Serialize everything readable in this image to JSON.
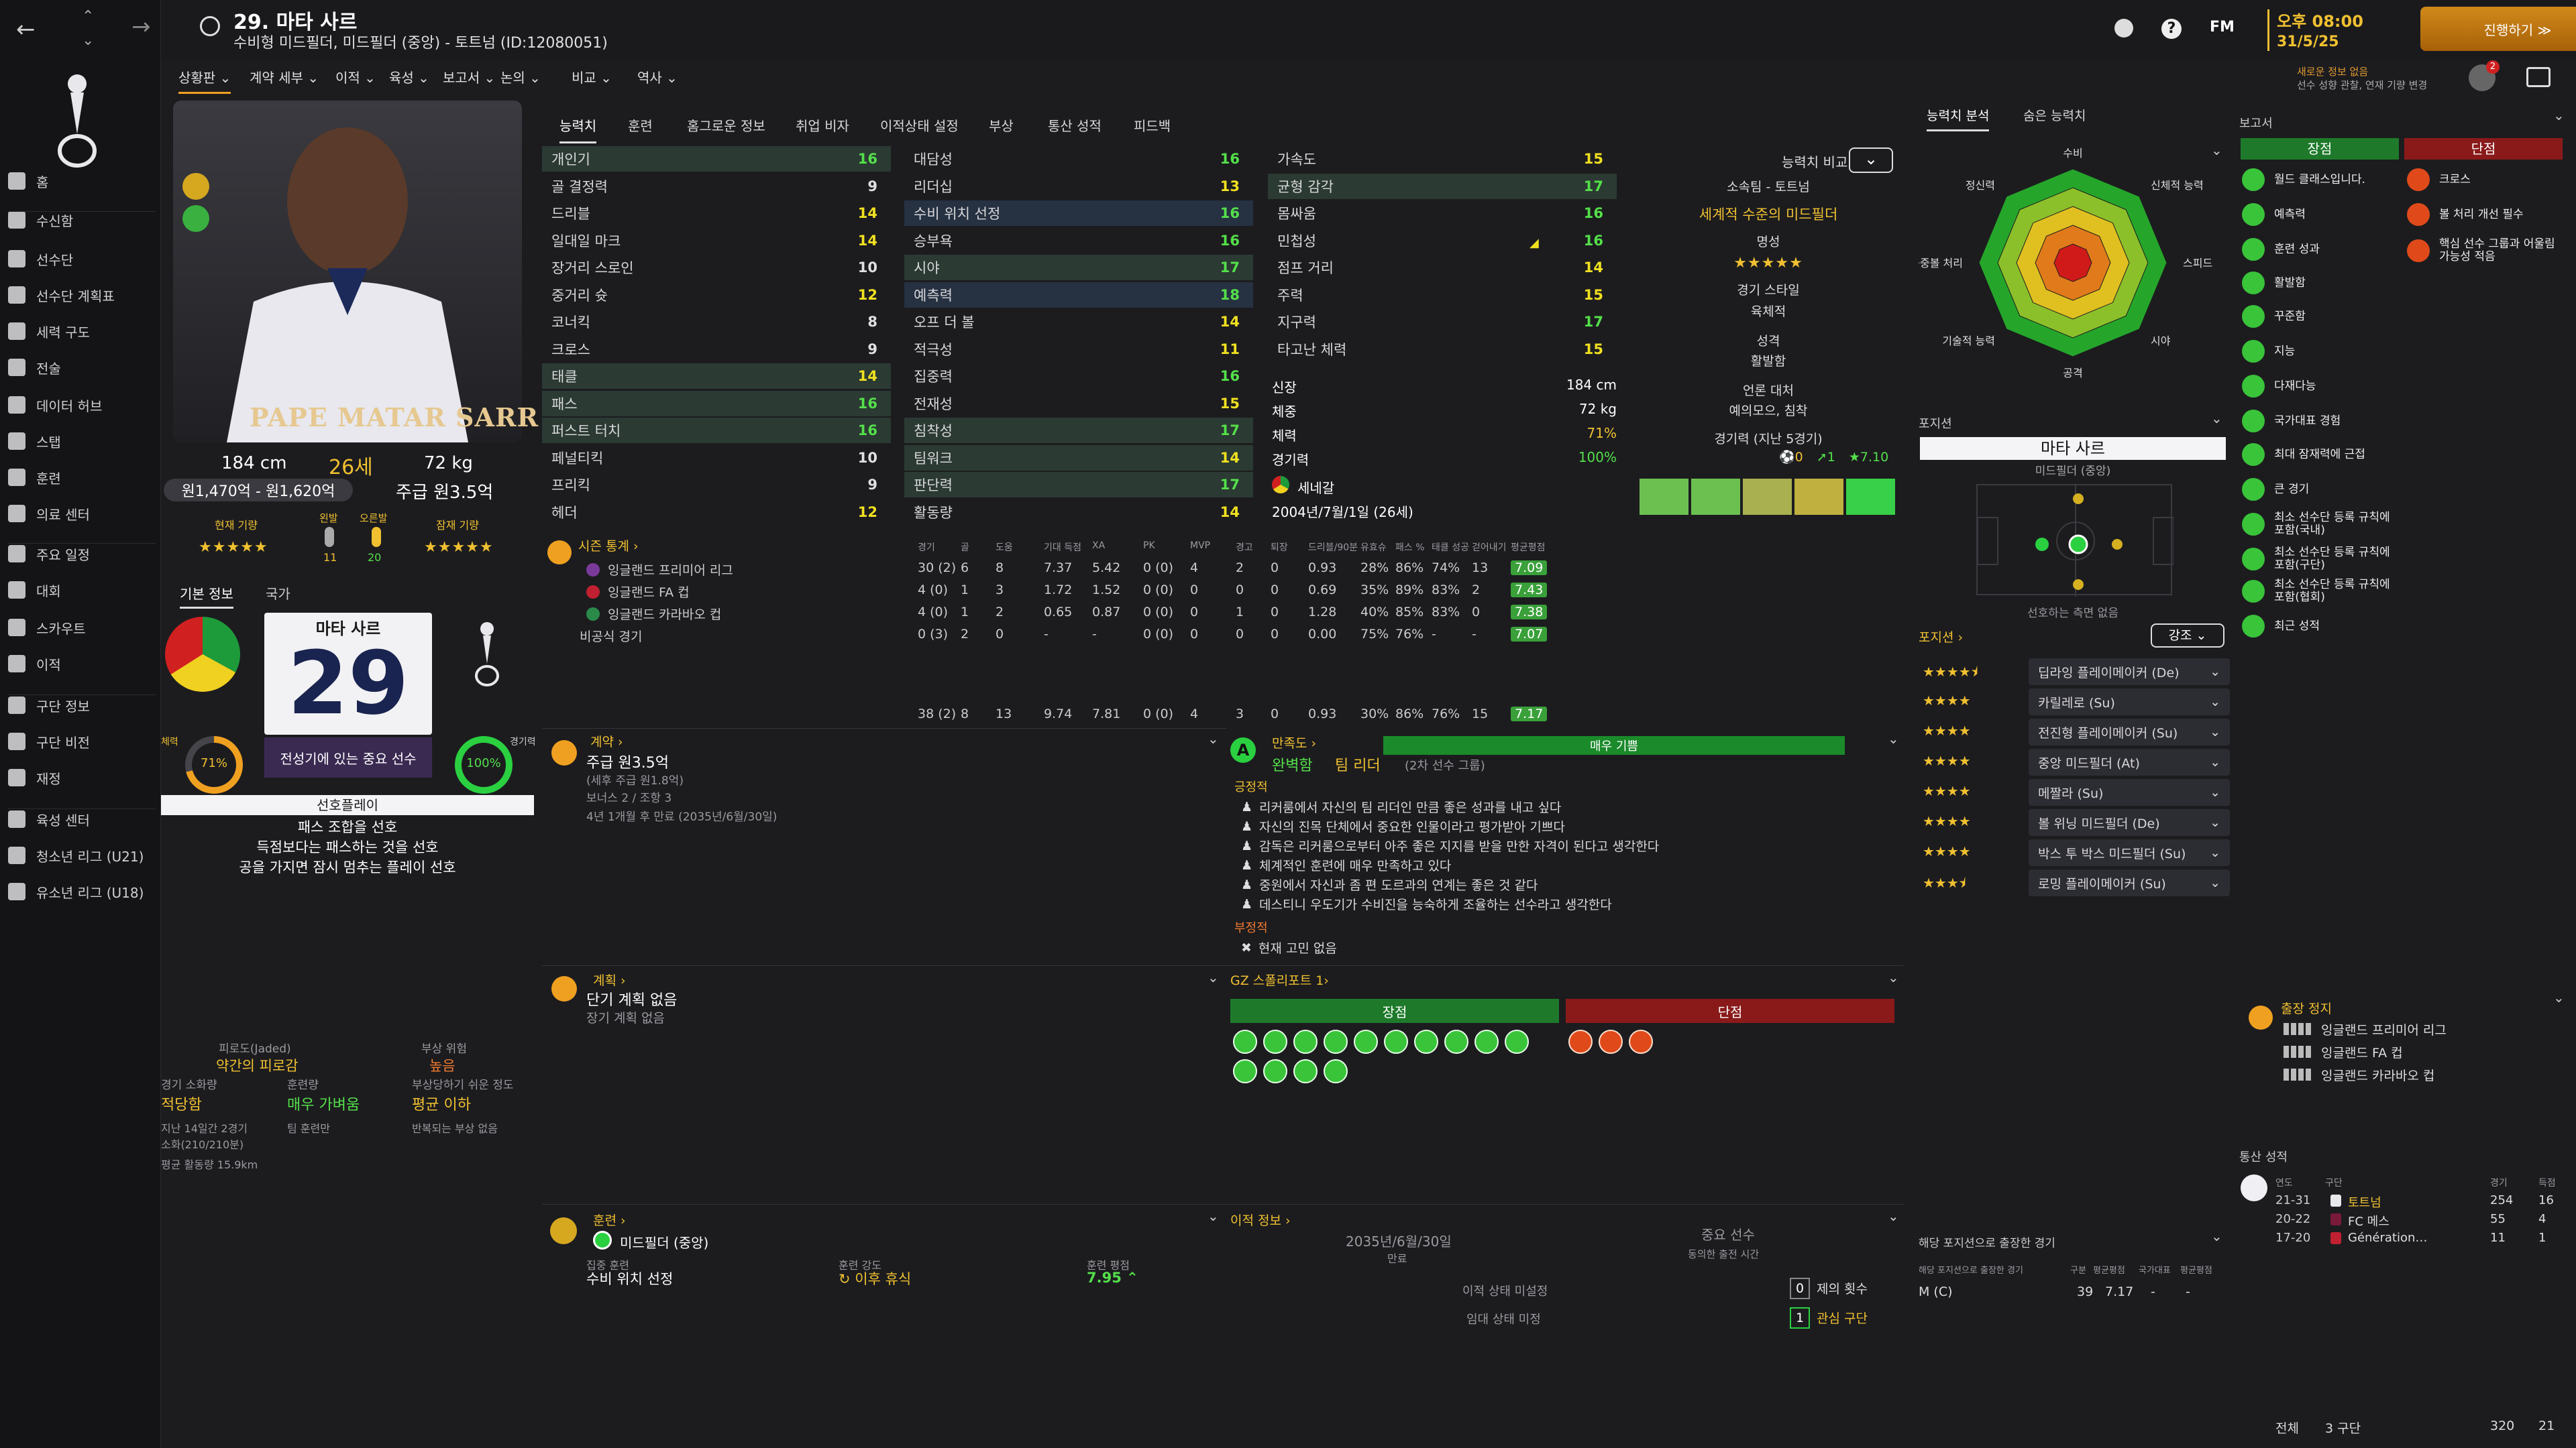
{
  "header": {
    "title": "29. 마타 사르",
    "subtitle": "수비형 미드필더, 미드필더 (중앙) - 토트넘 (ID:12080051)",
    "time": "오후 08:00",
    "date": "31/5/25",
    "continue_label": "진행하기 ≫",
    "fm_label": "FM",
    "notice_title": "새로운 정보 없음",
    "notice_text": "선수 성향 관찰, 연재 기량 변경",
    "badge_count": "2"
  },
  "sidebar": {
    "items": [
      {
        "label": "홈",
        "icon": "home-icon"
      },
      {
        "label": "수신함",
        "icon": "inbox-icon"
      },
      {
        "label": "선수단",
        "icon": "shirt-icon"
      },
      {
        "label": "선수단 계획표",
        "icon": "planner-icon"
      },
      {
        "label": "세력 구도",
        "icon": "dynamics-icon"
      },
      {
        "label": "전술",
        "icon": "tactics-icon"
      },
      {
        "label": "데이터 허브",
        "icon": "data-hub-icon"
      },
      {
        "label": "스탭",
        "icon": "staff-icon"
      },
      {
        "label": "훈련",
        "icon": "training-icon"
      },
      {
        "label": "의료 센터",
        "icon": "medical-icon"
      },
      {
        "label": "주요 일정",
        "icon": "calendar-icon"
      },
      {
        "label": "대회",
        "icon": "trophy-icon"
      },
      {
        "label": "스카우트",
        "icon": "scout-icon"
      },
      {
        "label": "이적",
        "icon": "transfer-icon"
      },
      {
        "label": "구단 정보",
        "icon": "club-icon"
      },
      {
        "label": "구단 비전",
        "icon": "vision-icon"
      },
      {
        "label": "재정",
        "icon": "finance-icon"
      },
      {
        "label": "육성 센터",
        "icon": "development-icon"
      },
      {
        "label": "청소년 리그 (U21)",
        "icon": "youth-u21-icon"
      },
      {
        "label": "유소년 리그 (U18)",
        "icon": "youth-u18-icon"
      }
    ]
  },
  "subnav": [
    "상황판 ⌄",
    "계약 세부 ⌄",
    "이적 ⌄",
    "육성 ⌄",
    "보고서 ⌄",
    "논의 ⌄",
    "비교 ⌄",
    "역사 ⌄"
  ],
  "tabs": [
    "능력치",
    "훈련",
    "홈그로운 정보",
    "취업 비자",
    "이적상태 설정",
    "부상",
    "통산 성적",
    "피드백"
  ],
  "right_tabs": [
    "능력치 분석",
    "숨은 능력치"
  ],
  "player": {
    "name_on_photo": "PAPE MATAR SARR",
    "height": "184 cm",
    "age": "26세",
    "weight": "72 kg",
    "value": "원1,470억 - 원1,620억",
    "wage": "주급 원3.5억",
    "current_ability_label": "현재 기량",
    "potential_label": "잠재 기량",
    "left_foot_label": "왼발",
    "right_foot_label": "오른발",
    "left_foot": "11",
    "right_foot": "20",
    "card_name": "마타 사르",
    "card_number": "29",
    "card_text": "전성기에 있는 중요 선수",
    "fitness_label": "체력",
    "fitness": "71%",
    "sharpness_label": "경기력",
    "sharpness": "100%",
    "info_tab": "기본 정보",
    "nation_tab": "국가"
  },
  "preferred_moves": {
    "title": "선호플레이",
    "items": [
      "패스 조합을 선호",
      "득점보다는 패스하는 것을 선호",
      "공을 가지면 잠시 멈추는 플레이 선호"
    ]
  },
  "fatigue": {
    "label": "피로도(Jaded)",
    "value": "약간의 피로감",
    "injury_label": "부상 위험",
    "injury_value": "높음",
    "load_label": "경기 소화량",
    "load_value": "적당함",
    "train_label": "훈련량",
    "train_value": "매우 가벼움",
    "prone_label": "부상당하기 쉬운 정도",
    "prone_value": "평균 이하",
    "note1": "지난 14일간 2경기",
    "note2": "소화(210/210분)",
    "note3": "평균 활동량 15.9km",
    "note4": "팀 훈련만",
    "note5": "반복되는 부상 없음"
  },
  "attributes": {
    "technical": [
      {
        "name": "개인기",
        "value": "16"
      },
      {
        "name": "골 결정력",
        "value": "9"
      },
      {
        "name": "드리블",
        "value": "14"
      },
      {
        "name": "일대일 마크",
        "value": "14"
      },
      {
        "name": "장거리 스로인",
        "value": "10"
      },
      {
        "name": "중거리 슛",
        "value": "12"
      },
      {
        "name": "코너킥",
        "value": "8"
      },
      {
        "name": "크로스",
        "value": "9"
      },
      {
        "name": "태클",
        "value": "14"
      },
      {
        "name": "패스",
        "value": "16"
      },
      {
        "name": "퍼스트 터치",
        "value": "16"
      },
      {
        "name": "페널티킥",
        "value": "10"
      },
      {
        "name": "프리킥",
        "value": "9"
      },
      {
        "name": "헤더",
        "value": "12"
      }
    ],
    "mental": [
      {
        "name": "대담성",
        "value": "16"
      },
      {
        "name": "리더십",
        "value": "13"
      },
      {
        "name": "수비 위치 선정",
        "value": "16"
      },
      {
        "name": "승부욕",
        "value": "16"
      },
      {
        "name": "시야",
        "value": "17"
      },
      {
        "name": "예측력",
        "value": "18"
      },
      {
        "name": "오프 더 볼",
        "value": "14"
      },
      {
        "name": "적극성",
        "value": "11"
      },
      {
        "name": "집중력",
        "value": "16"
      },
      {
        "name": "전재성",
        "value": "15"
      },
      {
        "name": "침착성",
        "value": "17"
      },
      {
        "name": "팀워크",
        "value": "14"
      },
      {
        "name": "판단력",
        "value": "17"
      },
      {
        "name": "활동량",
        "value": "14"
      }
    ],
    "physical": [
      {
        "name": "가속도",
        "value": "15"
      },
      {
        "name": "균형 감각",
        "value": "17"
      },
      {
        "name": "몸싸움",
        "value": "16"
      },
      {
        "name": "민첩성",
        "value": "16"
      },
      {
        "name": "점프 거리",
        "value": "14"
      },
      {
        "name": "주력",
        "value": "15"
      },
      {
        "name": "지구력",
        "value": "17"
      },
      {
        "name": "타고난 체력",
        "value": "15"
      }
    ]
  },
  "physical_info": [
    {
      "label": "신장",
      "value": "184 cm"
    },
    {
      "label": "체중",
      "value": "72 kg"
    },
    {
      "label": "체력",
      "value": "71%"
    },
    {
      "label": "경기력",
      "value": "100%"
    }
  ],
  "nation": "세네갈",
  "dob": "2004년/7월/1일 (26세)",
  "compare": {
    "label": "능력치 비교",
    "club_label": "소속팀 - 토트넘",
    "club_value": "세계적 수준의 미드필더",
    "rep_label": "명성",
    "style_label": "경기 스타일",
    "style_value": "육체적",
    "personality_label": "성격",
    "personality_value": "활발함",
    "media_label": "언론 대처",
    "media_value": "예의모으, 침착",
    "form_label": "경기력 (지난 5경기)",
    "goals": "0",
    "assists": "1",
    "rating": "7.10",
    "form": [
      0.6,
      0.6,
      0.55,
      0.5,
      0.7
    ]
  },
  "stats": {
    "title": "시즌 통계 ›",
    "headers": [
      "경기",
      "골",
      "도움",
      "기대 득점",
      "XA",
      "PK",
      "MVP",
      "경고",
      "퇴장",
      "드리블/90분",
      "유효슈",
      "패스 %",
      "태클 성공",
      "걷어내기",
      "평균평점"
    ],
    "rows": [
      {
        "name": "잉글랜드 프리미어 리그",
        "cells": [
          "30 (2)",
          "6",
          "8",
          "7.37",
          "5.42",
          "0 (0)",
          "4",
          "2",
          "0",
          "0.93",
          "28%",
          "86%",
          "74%",
          "13",
          "7.09"
        ]
      },
      {
        "name": "잉글랜드 FA 컵",
        "cells": [
          "4 (0)",
          "1",
          "3",
          "1.72",
          "1.52",
          "0 (0)",
          "0",
          "0",
          "0",
          "0.69",
          "35%",
          "89%",
          "83%",
          "2",
          "7.43"
        ]
      },
      {
        "name": "잉글랜드 카라바오 컵",
        "cells": [
          "4 (0)",
          "1",
          "2",
          "0.65",
          "0.87",
          "0 (0)",
          "0",
          "1",
          "0",
          "1.28",
          "40%",
          "85%",
          "83%",
          "0",
          "7.38"
        ]
      },
      {
        "name": "비공식 경기",
        "cells": [
          "0 (3)",
          "2",
          "0",
          "-",
          "-",
          "0 (0)",
          "0",
          "0",
          "0",
          "0.00",
          "75%",
          "76%",
          "-",
          "-",
          "7.07"
        ]
      }
    ],
    "total": [
      "38 (2)",
      "8",
      "13",
      "9.74",
      "7.81",
      "0 (0)",
      "4",
      "3",
      "0",
      "0.93",
      "30%",
      "86%",
      "76%",
      "15",
      "7.17"
    ]
  },
  "contract": {
    "title": "계약 ›",
    "wage": "주급 원3.5억",
    "sub1": "(세후 주급 원1.8억)",
    "sub2": "보너스 2 / 조항 3",
    "sub3": "4년 1개월 후 만료 (2035년/6월/30일)"
  },
  "plans": {
    "title": "계획 ›",
    "short": "단기 계획 없음",
    "long": "장기 계획 없음"
  },
  "happiness": {
    "title": "만족도 ›",
    "level": "매우 기쁨",
    "status": "완벽함",
    "role": "팀 리더",
    "group": "(2차 선수 그룹)",
    "pos_label": "긍정적",
    "positives": [
      "리커룸에서 자신의 팀 리더인 만큼 좋은 성과를 내고 싶다",
      "자신의 진목 단체에서 중요한 인물이라고 평가받아 기쁘다",
      "감독은 리커룸으로부터 아주 좋은 지지를 받을 만한 자격이 된다고 생각한다",
      "체계적인 훈련에 매우 만족하고 있다",
      "중원에서 자신과 좀 편 도르과의 연계는 좋은 것 같다",
      "데스티니 우도기가 수비진을 능숙하게 조율하는 선수라고 생각한다"
    ],
    "neg_label": "부정적",
    "negatives": [
      "현재 고민 없음"
    ]
  },
  "scout_report": {
    "title": "GZ 스폴리포트 1›",
    "pros": "장점",
    "cons": "단점"
  },
  "training": {
    "title": "훈련 ›",
    "position": "미드필더 (중앙)",
    "focus_label": "집중 훈련",
    "focus": "수비 위치 선정",
    "intensity_label": "훈련 강도",
    "intensity": "↻ 이후 휴식",
    "rating_label": "훈련 평점",
    "rating": "7.95 ⌃"
  },
  "transfer": {
    "title": "이적 정보 ›",
    "expiry": "2035년/6월/30일",
    "expiry_label": "만료",
    "status": "중요 선수",
    "status_label": "동의한 출전 시간",
    "state1": "이적 상태 미설정",
    "state2": "임대 상태 미정",
    "offers": "0",
    "offers_label": "제의 횟수",
    "interest": "1",
    "interest_label": "관심 구단"
  },
  "positions": {
    "title": "포지션",
    "name": "마타 사르",
    "name_sub": "미드필더 (중앙)",
    "note": "선호하는 측면 없음",
    "roles_label": "포지션 ›",
    "filter": "강조 ⌄",
    "roles": [
      {
        "name": "딥라잉 플레이메이커 (De)",
        "stars": 4.5
      },
      {
        "name": "카릴레로 (Su)",
        "stars": 4
      },
      {
        "name": "전진형 플레이메이커 (Su)",
        "stars": 4
      },
      {
        "name": "중앙 미드필더 (At)",
        "stars": 4
      },
      {
        "name": "메짤라 (Su)",
        "stars": 4
      },
      {
        "name": "볼 위닝 미드필더 (De)",
        "stars": 4
      },
      {
        "name": "박스 투 박스 미드필더 (Su)",
        "stars": 4
      },
      {
        "name": "로밍 플레이메이커 (Su)",
        "stars": 3.5
      }
    ]
  },
  "radar": {
    "labels": [
      "수비",
      "신체적 능력",
      "스피드",
      "시야",
      "공격",
      "기술적 능력",
      "공중볼 처리",
      "정신력"
    ]
  },
  "pos_apps": {
    "title": "해당 포지션으로 출장한 경기",
    "col1": "해당 포지션으로 출장한 경기",
    "col2": "구분",
    "col3": "평균평점",
    "col4": "국가대표",
    "col5": "평균평점",
    "row": [
      "M (C)",
      "39",
      "7.17",
      "-",
      "-"
    ]
  },
  "report": {
    "title": "보고서",
    "pros_label": "장점",
    "cons_label": "단점",
    "pros": [
      "월드 클래스입니다.",
      "예측력",
      "훈련 성과",
      "활발함",
      "꾸준함",
      "지능",
      "다재다능",
      "국가대표 경험",
      "최대 잠재력에 근접",
      "큰 경기",
      "최소 선수단 등록 규칙에 포함(국내)",
      "최소 선수단 등록 규칙에 포함(구단)",
      "최소 선수단 등록 규칙에 포함(협회)",
      "최근 성적"
    ],
    "cons": [
      "크로스",
      "볼 처리 개선 필수",
      "핵심 선수 그룹과 어울림 가능성 적음"
    ]
  },
  "suspension": {
    "title": "출장 정지",
    "items": [
      "잉글랜드 프리미어 리그",
      "잉글랜드 FA 컵",
      "잉글랜드 카라바오 컵"
    ]
  },
  "career": {
    "title": "통산 성적",
    "headers": [
      "연도",
      "구단",
      "경기",
      "득점"
    ],
    "rows": [
      {
        "year": "21-31",
        "club": "토트넘",
        "apps": "254",
        "goals": "16"
      },
      {
        "year": "20-22",
        "club": "FC 메스",
        "apps": "55",
        "goals": "4"
      },
      {
        "year": "17-20",
        "club": "Génération…",
        "apps": "11",
        "goals": "1"
      }
    ],
    "total_label": "전체",
    "total_clubs": "3 구단",
    "total_apps": "320",
    "total_goals": "21"
  },
  "colors": {
    "accent": "#f0c030",
    "green": "#54e04a",
    "red": "#b02020",
    "bg": "#1c1c1f"
  }
}
